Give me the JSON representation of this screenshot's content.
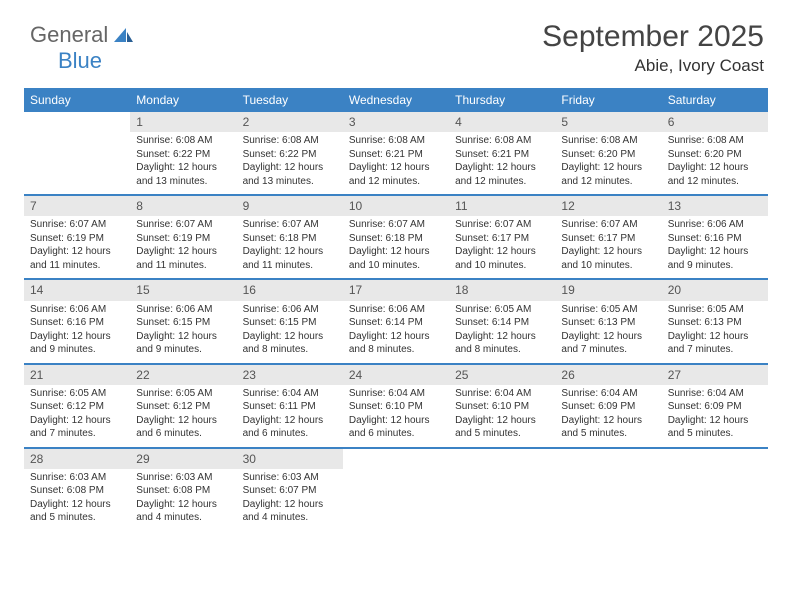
{
  "logo": {
    "text1": "General",
    "text2": "Blue"
  },
  "title": "September 2025",
  "location": "Abie, Ivory Coast",
  "dow": [
    "Sunday",
    "Monday",
    "Tuesday",
    "Wednesday",
    "Thursday",
    "Friday",
    "Saturday"
  ],
  "colors": {
    "header_bg": "#3b82c4",
    "daynum_bg": "#e8e8e8",
    "row_border": "#3b82c4",
    "text": "#333333",
    "logo_blue": "#3b82c4"
  },
  "weeks": [
    [
      {
        "n": "",
        "sr": "",
        "ss": "",
        "dl": ""
      },
      {
        "n": "1",
        "sr": "Sunrise: 6:08 AM",
        "ss": "Sunset: 6:22 PM",
        "dl": "Daylight: 12 hours and 13 minutes."
      },
      {
        "n": "2",
        "sr": "Sunrise: 6:08 AM",
        "ss": "Sunset: 6:22 PM",
        "dl": "Daylight: 12 hours and 13 minutes."
      },
      {
        "n": "3",
        "sr": "Sunrise: 6:08 AM",
        "ss": "Sunset: 6:21 PM",
        "dl": "Daylight: 12 hours and 12 minutes."
      },
      {
        "n": "4",
        "sr": "Sunrise: 6:08 AM",
        "ss": "Sunset: 6:21 PM",
        "dl": "Daylight: 12 hours and 12 minutes."
      },
      {
        "n": "5",
        "sr": "Sunrise: 6:08 AM",
        "ss": "Sunset: 6:20 PM",
        "dl": "Daylight: 12 hours and 12 minutes."
      },
      {
        "n": "6",
        "sr": "Sunrise: 6:08 AM",
        "ss": "Sunset: 6:20 PM",
        "dl": "Daylight: 12 hours and 12 minutes."
      }
    ],
    [
      {
        "n": "7",
        "sr": "Sunrise: 6:07 AM",
        "ss": "Sunset: 6:19 PM",
        "dl": "Daylight: 12 hours and 11 minutes."
      },
      {
        "n": "8",
        "sr": "Sunrise: 6:07 AM",
        "ss": "Sunset: 6:19 PM",
        "dl": "Daylight: 12 hours and 11 minutes."
      },
      {
        "n": "9",
        "sr": "Sunrise: 6:07 AM",
        "ss": "Sunset: 6:18 PM",
        "dl": "Daylight: 12 hours and 11 minutes."
      },
      {
        "n": "10",
        "sr": "Sunrise: 6:07 AM",
        "ss": "Sunset: 6:18 PM",
        "dl": "Daylight: 12 hours and 10 minutes."
      },
      {
        "n": "11",
        "sr": "Sunrise: 6:07 AM",
        "ss": "Sunset: 6:17 PM",
        "dl": "Daylight: 12 hours and 10 minutes."
      },
      {
        "n": "12",
        "sr": "Sunrise: 6:07 AM",
        "ss": "Sunset: 6:17 PM",
        "dl": "Daylight: 12 hours and 10 minutes."
      },
      {
        "n": "13",
        "sr": "Sunrise: 6:06 AM",
        "ss": "Sunset: 6:16 PM",
        "dl": "Daylight: 12 hours and 9 minutes."
      }
    ],
    [
      {
        "n": "14",
        "sr": "Sunrise: 6:06 AM",
        "ss": "Sunset: 6:16 PM",
        "dl": "Daylight: 12 hours and 9 minutes."
      },
      {
        "n": "15",
        "sr": "Sunrise: 6:06 AM",
        "ss": "Sunset: 6:15 PM",
        "dl": "Daylight: 12 hours and 9 minutes."
      },
      {
        "n": "16",
        "sr": "Sunrise: 6:06 AM",
        "ss": "Sunset: 6:15 PM",
        "dl": "Daylight: 12 hours and 8 minutes."
      },
      {
        "n": "17",
        "sr": "Sunrise: 6:06 AM",
        "ss": "Sunset: 6:14 PM",
        "dl": "Daylight: 12 hours and 8 minutes."
      },
      {
        "n": "18",
        "sr": "Sunrise: 6:05 AM",
        "ss": "Sunset: 6:14 PM",
        "dl": "Daylight: 12 hours and 8 minutes."
      },
      {
        "n": "19",
        "sr": "Sunrise: 6:05 AM",
        "ss": "Sunset: 6:13 PM",
        "dl": "Daylight: 12 hours and 7 minutes."
      },
      {
        "n": "20",
        "sr": "Sunrise: 6:05 AM",
        "ss": "Sunset: 6:13 PM",
        "dl": "Daylight: 12 hours and 7 minutes."
      }
    ],
    [
      {
        "n": "21",
        "sr": "Sunrise: 6:05 AM",
        "ss": "Sunset: 6:12 PM",
        "dl": "Daylight: 12 hours and 7 minutes."
      },
      {
        "n": "22",
        "sr": "Sunrise: 6:05 AM",
        "ss": "Sunset: 6:12 PM",
        "dl": "Daylight: 12 hours and 6 minutes."
      },
      {
        "n": "23",
        "sr": "Sunrise: 6:04 AM",
        "ss": "Sunset: 6:11 PM",
        "dl": "Daylight: 12 hours and 6 minutes."
      },
      {
        "n": "24",
        "sr": "Sunrise: 6:04 AM",
        "ss": "Sunset: 6:10 PM",
        "dl": "Daylight: 12 hours and 6 minutes."
      },
      {
        "n": "25",
        "sr": "Sunrise: 6:04 AM",
        "ss": "Sunset: 6:10 PM",
        "dl": "Daylight: 12 hours and 5 minutes."
      },
      {
        "n": "26",
        "sr": "Sunrise: 6:04 AM",
        "ss": "Sunset: 6:09 PM",
        "dl": "Daylight: 12 hours and 5 minutes."
      },
      {
        "n": "27",
        "sr": "Sunrise: 6:04 AM",
        "ss": "Sunset: 6:09 PM",
        "dl": "Daylight: 12 hours and 5 minutes."
      }
    ],
    [
      {
        "n": "28",
        "sr": "Sunrise: 6:03 AM",
        "ss": "Sunset: 6:08 PM",
        "dl": "Daylight: 12 hours and 5 minutes."
      },
      {
        "n": "29",
        "sr": "Sunrise: 6:03 AM",
        "ss": "Sunset: 6:08 PM",
        "dl": "Daylight: 12 hours and 4 minutes."
      },
      {
        "n": "30",
        "sr": "Sunrise: 6:03 AM",
        "ss": "Sunset: 6:07 PM",
        "dl": "Daylight: 12 hours and 4 minutes."
      },
      {
        "n": "",
        "sr": "",
        "ss": "",
        "dl": ""
      },
      {
        "n": "",
        "sr": "",
        "ss": "",
        "dl": ""
      },
      {
        "n": "",
        "sr": "",
        "ss": "",
        "dl": ""
      },
      {
        "n": "",
        "sr": "",
        "ss": "",
        "dl": ""
      }
    ]
  ]
}
